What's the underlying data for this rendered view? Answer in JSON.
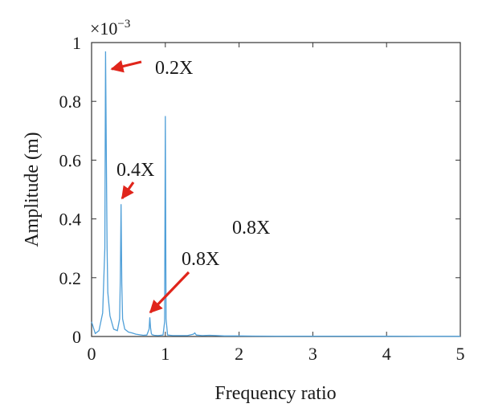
{
  "chart_data": {
    "type": "line",
    "xlabel": "Frequency ratio",
    "ylabel": "Amplitude (m)",
    "y_multiplier": {
      "base": "×10",
      "exponent": "−3"
    },
    "xlim": [
      0,
      5
    ],
    "ylim": [
      0,
      1
    ],
    "x_ticks": [
      "0",
      "1",
      "2",
      "3",
      "4",
      "5"
    ],
    "y_ticks": [
      "0",
      "0.2",
      "0.4",
      "0.6",
      "0.8",
      "1"
    ],
    "grid": false,
    "series_color": "#4f9fd8",
    "arrow_color": "#e0251b",
    "x": [
      0,
      0.05,
      0.1,
      0.15,
      0.18,
      0.19,
      0.2,
      0.21,
      0.22,
      0.25,
      0.3,
      0.35,
      0.38,
      0.39,
      0.4,
      0.41,
      0.42,
      0.45,
      0.5,
      0.55,
      0.6,
      0.7,
      0.75,
      0.78,
      0.79,
      0.8,
      0.81,
      0.82,
      0.85,
      0.9,
      0.97,
      0.99,
      1.0,
      1.01,
      1.03,
      1.1,
      1.2,
      1.3,
      1.38,
      1.4,
      1.42,
      1.5,
      1.6,
      1.8,
      2.0,
      2.2,
      2.5,
      3.0,
      3.5,
      4.0,
      4.5,
      5.0
    ],
    "y": [
      0.05,
      0.01,
      0.02,
      0.08,
      0.3,
      0.97,
      0.6,
      0.3,
      0.15,
      0.07,
      0.025,
      0.02,
      0.06,
      0.2,
      0.45,
      0.18,
      0.06,
      0.025,
      0.015,
      0.012,
      0.008,
      0.004,
      0.005,
      0.025,
      0.065,
      0.03,
      0.01,
      0.006,
      0.004,
      0.003,
      0.005,
      0.05,
      0.75,
      0.06,
      0.005,
      0.003,
      0.003,
      0.003,
      0.008,
      0.012,
      0.005,
      0.003,
      0.004,
      0.002,
      0.002,
      0.0015,
      0.0012,
      0.001,
      0.001,
      0.0008,
      0.0006,
      0.0005
    ],
    "annotations": [
      {
        "text": "0.2X",
        "arrow_to": [
          0.2,
          0.91
        ]
      },
      {
        "text": "0.4X",
        "arrow_to": [
          0.4,
          0.47
        ]
      },
      {
        "text": "0.8X",
        "arrow_to": [
          0.78,
          0.085
        ]
      },
      {
        "text": "0.8X",
        "arrow_to": null
      }
    ]
  }
}
